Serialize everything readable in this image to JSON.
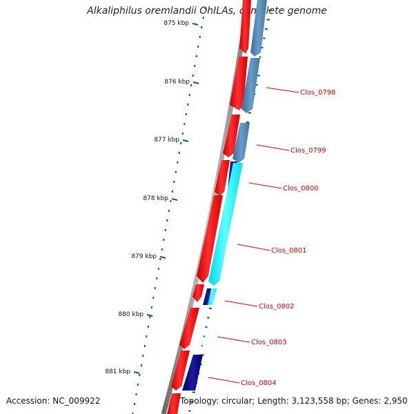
{
  "title": "Alkaliphilus oremlandii OhILAs, complete genome",
  "footer": {
    "accession": "Accession: NC_009922",
    "summary": "Topology: circular; Length: 3,123,558 bp; Genes: 2,950"
  },
  "scale_labels": [
    "875 kbp",
    "876 kbp",
    "877 kbp",
    "878 kbp",
    "879 kbp",
    "880 kbp",
    "881 kbp"
  ],
  "gene_labels": [
    "Clos_0798",
    "Clos_0799",
    "Clos_0800",
    "Clos_0801",
    "Clos_0802",
    "Clos_0803",
    "Clos_0804"
  ],
  "colors": {
    "backbone": "#9a9a9a",
    "forward_feature": "#ff0000",
    "reverse_feature_a": "#4682b4",
    "reverse_feature_b": "#00ffff",
    "reverse_feature_c": "#000080",
    "gc_skew_dots": "#007700",
    "label_text": "#d40000"
  }
}
